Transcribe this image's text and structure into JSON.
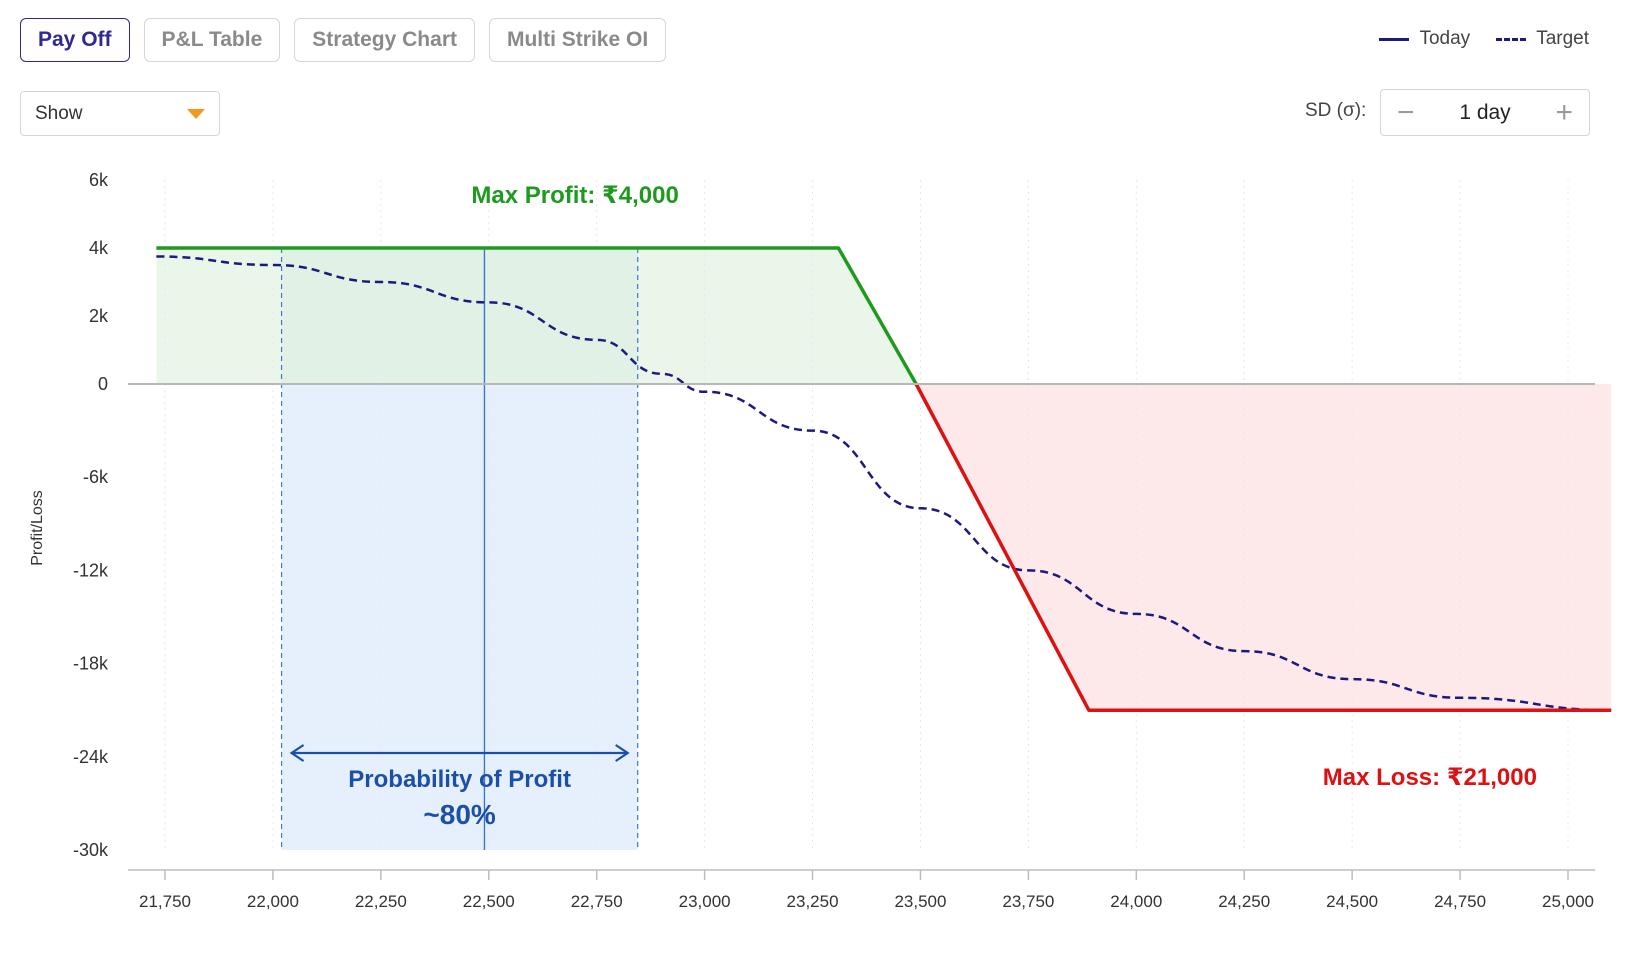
{
  "tabs": [
    {
      "label": "Pay Off",
      "active": true
    },
    {
      "label": "P&L Table",
      "active": false
    },
    {
      "label": "Strategy Chart",
      "active": false
    },
    {
      "label": "Multi Strike OI",
      "active": false
    }
  ],
  "legend": {
    "today": "Today",
    "target": "Target"
  },
  "show_select": {
    "value": "Show"
  },
  "sd": {
    "label": "SD (σ):",
    "value": "1 day",
    "minus": "−",
    "plus": "+"
  },
  "colors": {
    "accent": "#2e2a8f",
    "profit": "#1e9a1e",
    "loss": "#dd1111",
    "target": "#1d1a7e",
    "pop": "#1b4fa8",
    "dropdown_arrow": "#f29a1f"
  },
  "chart_data": {
    "type": "line",
    "ylabel": "Profit/Loss",
    "x_ticks": [
      "21,750",
      "22,000",
      "22,250",
      "22,500",
      "22,750",
      "23,000",
      "23,250",
      "23,500",
      "23,750",
      "24,000",
      "24,250",
      "24,500",
      "24,750",
      "25,000"
    ],
    "y_ticks": [
      "6k",
      "4k",
      "2k",
      "0",
      "-6k",
      "-12k",
      "-18k",
      "-24k",
      "-30k"
    ],
    "xlim": [
      21730,
      25100
    ],
    "series": [
      {
        "name": "Today",
        "style": "solid",
        "points": [
          [
            21730,
            4000
          ],
          [
            23310,
            4000
          ],
          [
            23490,
            0
          ],
          [
            23890,
            -21000
          ],
          [
            25100,
            -21000
          ]
        ]
      },
      {
        "name": "Target",
        "style": "dashed",
        "points": [
          [
            21730,
            3750
          ],
          [
            22000,
            3500
          ],
          [
            22250,
            3000
          ],
          [
            22500,
            2400
          ],
          [
            22750,
            1300
          ],
          [
            22900,
            300
          ],
          [
            23000,
            -500
          ],
          [
            23250,
            -3000
          ],
          [
            23500,
            -8000
          ],
          [
            23750,
            -12000
          ],
          [
            24000,
            -14800
          ],
          [
            24250,
            -17200
          ],
          [
            24500,
            -19000
          ],
          [
            24750,
            -20200
          ],
          [
            25100,
            -21000
          ]
        ]
      }
    ],
    "annotations": {
      "max_profit": "Max Profit: ₹4,000",
      "max_loss": "Max Loss: ₹21,000",
      "pop_label": "Probability of Profit",
      "pop_value": "~80%"
    },
    "pop_range": [
      22020,
      22845
    ],
    "spot": 22490
  }
}
